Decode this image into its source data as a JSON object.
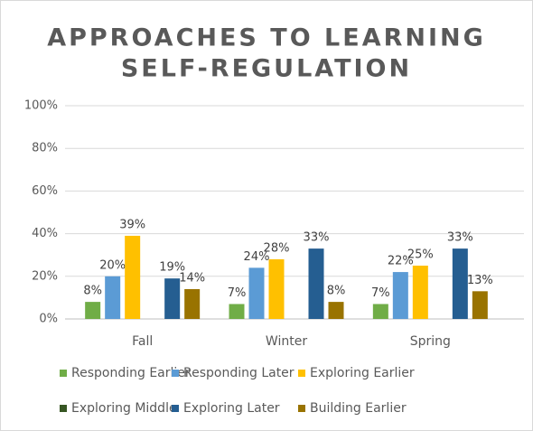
{
  "chart_data": {
    "type": "bar",
    "title": [
      "APPROACHES TO LEARNING",
      "SELF-REGULATION"
    ],
    "categories": [
      "Fall",
      "Winter",
      "Spring"
    ],
    "series": [
      {
        "name": "Responding Earlier",
        "color": "#70ad47",
        "values": [
          8,
          7,
          7
        ],
        "value_labels": [
          "8%",
          "7%",
          "7%"
        ]
      },
      {
        "name": "Responding Later",
        "color": "#5b9bd5",
        "values": [
          20,
          24,
          22
        ],
        "value_labels": [
          "20%",
          "24%",
          "22%"
        ]
      },
      {
        "name": "Exploring Earlier",
        "color": "#ffc000",
        "values": [
          39,
          28,
          25
        ],
        "value_labels": [
          "39%",
          "28%",
          "25%"
        ]
      },
      {
        "name": "Exploring Middle",
        "color": "#375623",
        "values": [
          null,
          null,
          null
        ],
        "value_labels": [
          null,
          null,
          null
        ]
      },
      {
        "name": "Exploring Later",
        "color": "#255e91",
        "values": [
          19,
          33,
          33
        ],
        "value_labels": [
          "19%",
          "33%",
          "33%"
        ]
      },
      {
        "name": "Building Earlier",
        "color": "#997300",
        "values": [
          14,
          8,
          13
        ],
        "value_labels": [
          "14%",
          "8%",
          "13%"
        ]
      }
    ],
    "ylim": [
      0,
      100
    ],
    "yticks": [
      {
        "value": 0,
        "label": "0%"
      },
      {
        "value": 20,
        "label": "20%"
      },
      {
        "value": 40,
        "label": "40%"
      },
      {
        "value": 60,
        "label": "60%"
      },
      {
        "value": 80,
        "label": "80%"
      },
      {
        "value": 100,
        "label": "100%"
      }
    ],
    "grid": true,
    "legend": "bottom"
  }
}
